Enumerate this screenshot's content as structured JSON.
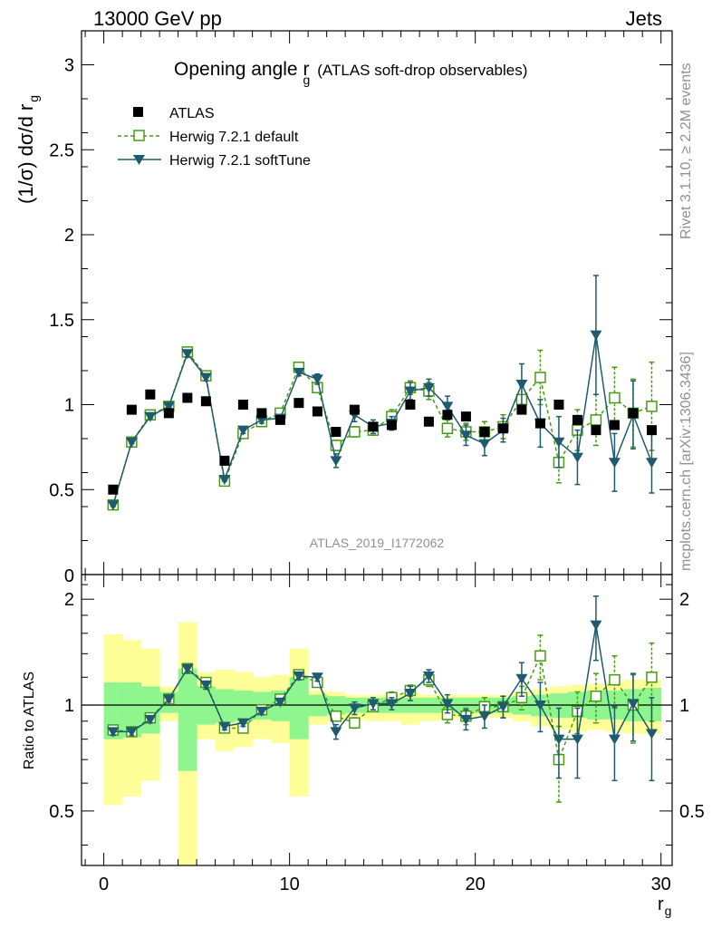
{
  "header": {
    "left": "13000 GeV pp",
    "right": "Jets"
  },
  "side_labels": {
    "rivet": "Rivet 3.1.10, ≥ 2.2M events",
    "mcplots": "mcplots.cern.ch [arXiv:1306.3436]"
  },
  "watermark": "ATLAS_2019_I1772062",
  "chart_data": [
    {
      "type": "scatter",
      "title": "Opening angle r",
      "title_sub": "g",
      "title_suffix": "(ATLAS soft-drop observables)",
      "ylabel": "(1/σ) dσ/d r",
      "ylabel_sub": "g",
      "xlim": [
        -1.2,
        30.6
      ],
      "ylim": [
        0,
        3.2
      ],
      "yticks": [
        0.5,
        1,
        1.5,
        2,
        2.5,
        3
      ],
      "ytick_labels": [
        "0.5",
        "1",
        "1.5",
        "2",
        "2.5",
        "3"
      ],
      "y_zero_label": "0",
      "x": [
        0.5,
        1.5,
        2.5,
        3.5,
        4.5,
        5.5,
        6.5,
        7.5,
        8.5,
        9.5,
        10.5,
        11.5,
        12.5,
        13.5,
        14.5,
        15.5,
        16.5,
        17.5,
        18.5,
        19.5,
        20.5,
        21.5,
        22.5,
        23.5,
        24.5,
        25.5,
        26.5,
        27.5,
        28.5,
        29.5
      ],
      "series": [
        {
          "name": "ATLAS",
          "color": "#000000",
          "values": [
            0.5,
            0.97,
            1.06,
            0.95,
            1.04,
            1.02,
            0.67,
            1.0,
            0.95,
            0.91,
            1.01,
            0.96,
            0.84,
            0.97,
            0.87,
            0.88,
            1.0,
            0.9,
            0.94,
            0.93,
            0.84,
            0.86,
            0.97,
            0.89,
            1.0,
            0.91,
            0.85,
            0.88,
            0.95,
            0.85
          ],
          "errors": [
            0.02,
            0.02,
            0.02,
            0.02,
            0.02,
            0.02,
            0.02,
            0.02,
            0.02,
            0.02,
            0.02,
            0.02,
            0.02,
            0.02,
            0.02,
            0.02,
            0.02,
            0.02,
            0.02,
            0.02,
            0.02,
            0.02,
            0.02,
            0.02,
            0.02,
            0.03,
            0.03,
            0.03,
            0.04,
            0.04
          ]
        },
        {
          "name": "Herwig 7.2.1 default",
          "color": "#4a9a14",
          "values": [
            0.41,
            0.78,
            0.94,
            0.99,
            1.31,
            1.17,
            0.55,
            0.83,
            0.9,
            0.95,
            1.22,
            1.1,
            0.76,
            0.84,
            0.85,
            0.93,
            1.1,
            1.08,
            0.86,
            0.84,
            0.84,
            0.87,
            1.03,
            1.16,
            0.66,
            0.85,
            0.91,
            1.04,
            0.95,
            0.99
          ],
          "errors": [
            0.01,
            0.01,
            0.01,
            0.01,
            0.02,
            0.02,
            0.01,
            0.02,
            0.02,
            0.02,
            0.02,
            0.03,
            0.03,
            0.03,
            0.03,
            0.04,
            0.04,
            0.05,
            0.05,
            0.05,
            0.06,
            0.07,
            0.08,
            0.16,
            0.12,
            0.12,
            0.15,
            0.18,
            0.2,
            0.26
          ]
        },
        {
          "name": "Herwig 7.2.1 softTune",
          "color": "#1e5b6e",
          "values": [
            0.41,
            0.78,
            0.93,
            0.99,
            1.3,
            1.16,
            0.56,
            0.85,
            0.91,
            0.92,
            1.19,
            1.15,
            0.67,
            0.94,
            0.87,
            0.89,
            1.08,
            1.1,
            0.99,
            0.82,
            0.77,
            0.85,
            1.12,
            0.89,
            0.78,
            0.69,
            1.41,
            0.66,
            0.94,
            0.66
          ],
          "errors": [
            0.01,
            0.01,
            0.01,
            0.01,
            0.02,
            0.02,
            0.01,
            0.02,
            0.02,
            0.02,
            0.02,
            0.03,
            0.04,
            0.04,
            0.04,
            0.04,
            0.05,
            0.05,
            0.06,
            0.06,
            0.07,
            0.07,
            0.12,
            0.14,
            0.15,
            0.16,
            0.35,
            0.17,
            0.2,
            0.18
          ]
        }
      ]
    },
    {
      "type": "scatter",
      "ylabel": "Ratio to ATLAS",
      "xlabel": "r",
      "xlabel_sub": "g",
      "xlim": [
        -1.2,
        30.6
      ],
      "ylim": [
        0.35,
        2.35
      ],
      "yticks": [
        0.5,
        1,
        2
      ],
      "ytick_labels": [
        "0.5",
        "1",
        "2"
      ],
      "xticks": [
        0,
        10,
        20,
        30
      ],
      "xtick_labels": [
        "0",
        "10",
        "20",
        "30"
      ],
      "band_inner": [
        [
          0.8,
          1.16
        ],
        [
          0.81,
          1.16
        ],
        [
          0.83,
          1.13
        ],
        [
          0.95,
          1.09
        ],
        [
          0.65,
          1.27
        ],
        [
          0.88,
          1.13
        ],
        [
          0.89,
          1.11
        ],
        [
          0.9,
          1.1
        ],
        [
          0.91,
          1.09
        ],
        [
          0.9,
          1.1
        ],
        [
          0.8,
          1.2
        ],
        [
          0.93,
          1.07
        ],
        [
          0.94,
          1.06
        ],
        [
          0.95,
          1.05
        ],
        [
          0.95,
          1.05
        ],
        [
          0.95,
          1.05
        ],
        [
          0.95,
          1.05
        ],
        [
          0.95,
          1.05
        ],
        [
          0.95,
          1.05
        ],
        [
          0.95,
          1.05
        ],
        [
          0.95,
          1.05
        ],
        [
          0.95,
          1.05
        ],
        [
          0.94,
          1.06
        ],
        [
          0.93,
          1.07
        ],
        [
          0.92,
          1.08
        ],
        [
          0.92,
          1.09
        ],
        [
          0.91,
          1.1
        ],
        [
          0.91,
          1.1
        ],
        [
          0.9,
          1.11
        ],
        [
          0.9,
          1.12
        ]
      ],
      "band_outer": [
        [
          0.52,
          1.59
        ],
        [
          0.55,
          1.53
        ],
        [
          0.61,
          1.45
        ],
        [
          0.9,
          1.13
        ],
        [
          0.35,
          1.72
        ],
        [
          0.8,
          1.24
        ],
        [
          0.74,
          1.26
        ],
        [
          0.76,
          1.24
        ],
        [
          0.8,
          1.2
        ],
        [
          0.78,
          1.22
        ],
        [
          0.55,
          1.45
        ],
        [
          0.88,
          1.1
        ],
        [
          0.9,
          1.09
        ],
        [
          0.91,
          1.07
        ],
        [
          0.9,
          1.07
        ],
        [
          0.9,
          1.07
        ],
        [
          0.88,
          1.08
        ],
        [
          0.9,
          1.07
        ],
        [
          0.91,
          1.07
        ],
        [
          0.92,
          1.07
        ],
        [
          0.92,
          1.07
        ],
        [
          0.92,
          1.07
        ],
        [
          0.9,
          1.09
        ],
        [
          0.87,
          1.11
        ],
        [
          0.85,
          1.13
        ],
        [
          0.84,
          1.14
        ],
        [
          0.85,
          1.15
        ],
        [
          0.84,
          1.16
        ],
        [
          0.83,
          1.18
        ],
        [
          0.83,
          1.18
        ]
      ],
      "band_colors": {
        "inner": "#8ff58f",
        "outer": "#ffff9a"
      },
      "series": [
        {
          "name": "Herwig 7.2.1 default",
          "color": "#4a9a14",
          "values": [
            0.85,
            0.84,
            0.92,
            1.04,
            1.27,
            1.16,
            0.86,
            0.86,
            0.97,
            1.04,
            1.22,
            1.16,
            0.93,
            0.89,
            0.99,
            1.05,
            1.1,
            1.18,
            0.94,
            0.93,
            0.99,
            0.99,
            1.05,
            1.38,
            0.7,
            0.96,
            1.06,
            1.18,
            1.0,
            1.2
          ],
          "errors": [
            0.02,
            0.02,
            0.02,
            0.02,
            0.03,
            0.03,
            0.02,
            0.02,
            0.02,
            0.02,
            0.03,
            0.03,
            0.03,
            0.03,
            0.03,
            0.04,
            0.04,
            0.05,
            0.05,
            0.05,
            0.06,
            0.07,
            0.08,
            0.2,
            0.17,
            0.13,
            0.17,
            0.2,
            0.22,
            0.3
          ]
        },
        {
          "name": "Herwig 7.2.1 softTune",
          "color": "#1e5b6e",
          "values": [
            0.84,
            0.84,
            0.91,
            1.04,
            1.27,
            1.14,
            0.87,
            0.89,
            0.96,
            1.02,
            1.21,
            1.2,
            0.84,
            0.98,
            1.01,
            1.01,
            1.08,
            1.21,
            1.01,
            0.91,
            0.93,
            0.99,
            1.19,
            1.0,
            0.8,
            0.8,
            1.69,
            0.8,
            1.01,
            0.83
          ],
          "errors": [
            0.02,
            0.02,
            0.02,
            0.02,
            0.03,
            0.03,
            0.02,
            0.02,
            0.02,
            0.02,
            0.03,
            0.03,
            0.04,
            0.04,
            0.04,
            0.04,
            0.05,
            0.05,
            0.06,
            0.06,
            0.07,
            0.07,
            0.13,
            0.16,
            0.18,
            0.18,
            0.35,
            0.19,
            0.22,
            0.22
          ]
        }
      ]
    }
  ]
}
